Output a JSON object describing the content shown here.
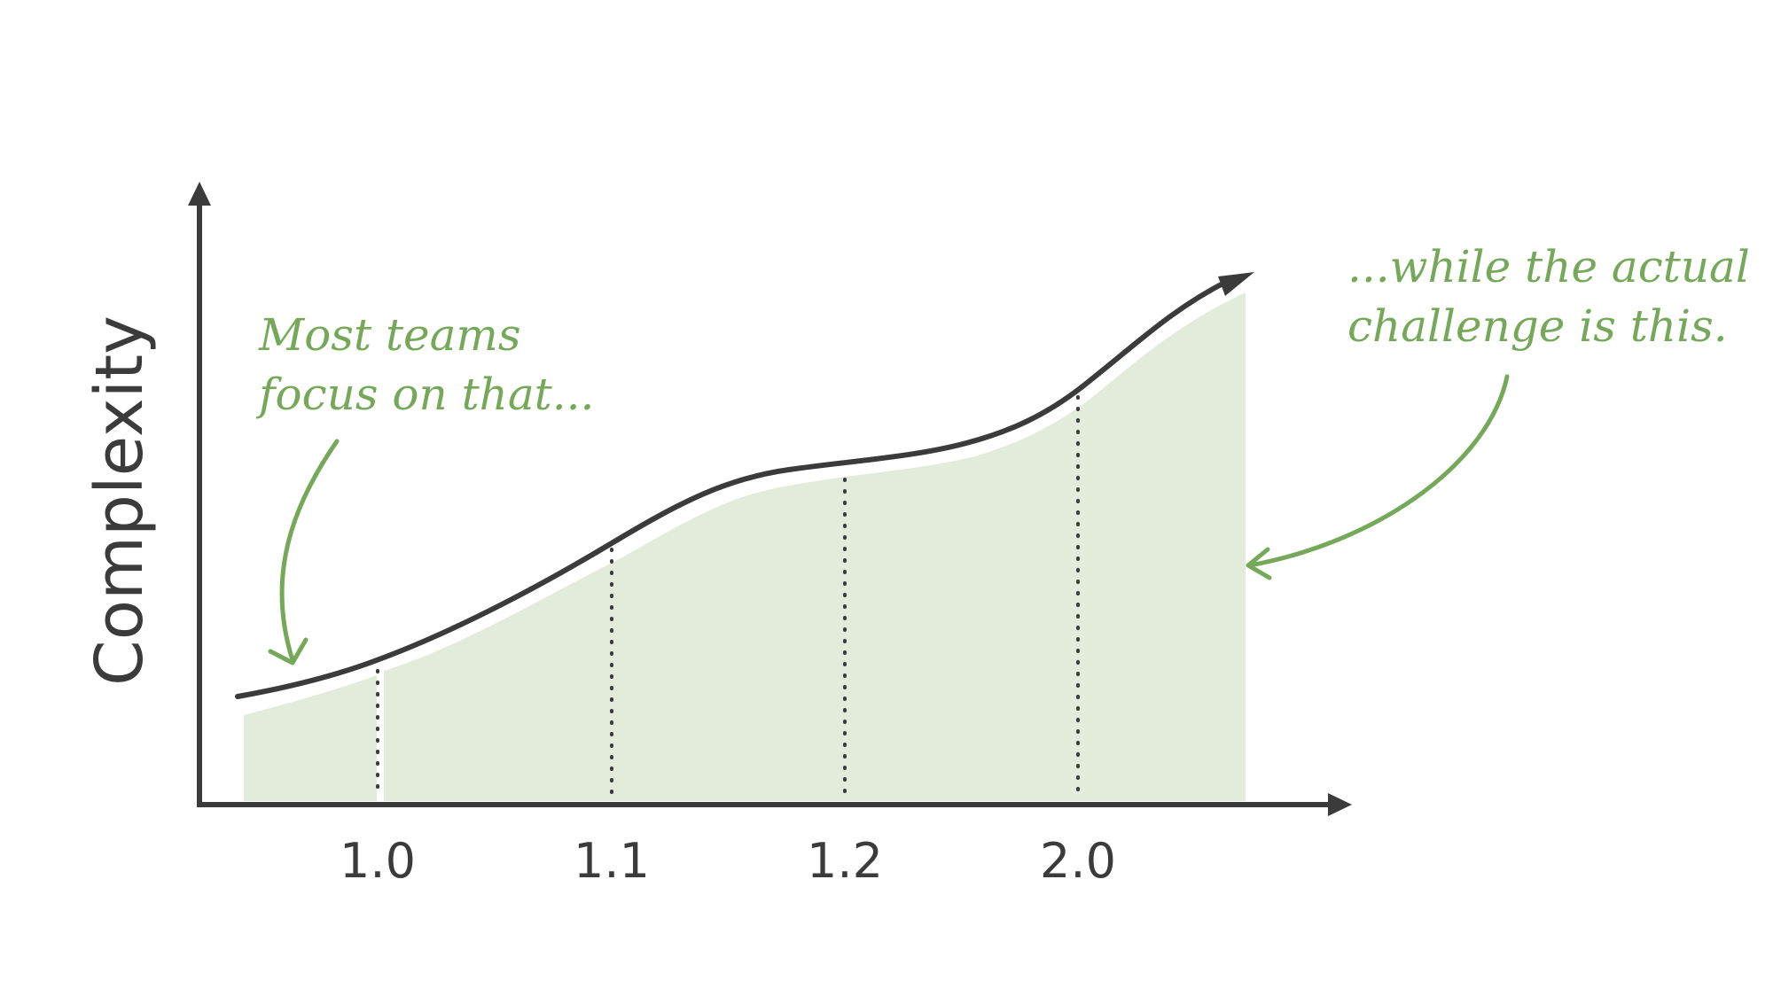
{
  "axis": {
    "y_label": "Complexity"
  },
  "releases": [
    {
      "label": "1.0"
    },
    {
      "label": "1.1"
    },
    {
      "label": "1.2"
    },
    {
      "label": "2.0"
    }
  ],
  "annotations": {
    "left": {
      "lines": [
        "Most teams",
        "focus on that..."
      ]
    },
    "right": {
      "lines": [
        "...while the actual",
        "challenge is this."
      ]
    }
  },
  "colors": {
    "axis": "#3b3b3b",
    "area": "#e3ebdb",
    "annotation": "#76a85a"
  }
}
